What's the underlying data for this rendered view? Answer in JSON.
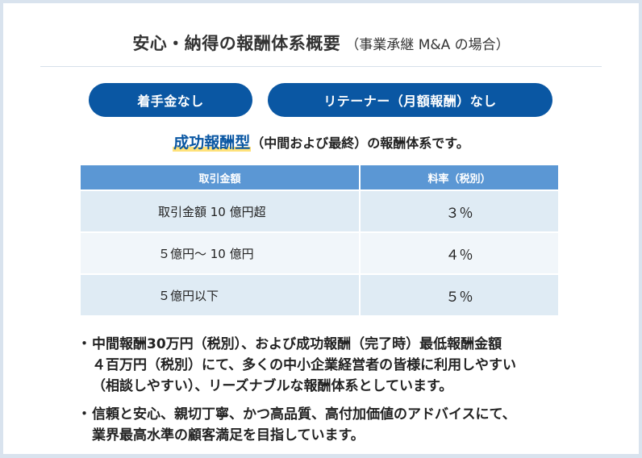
{
  "header": {
    "title": "安心・納得の報酬体系概要",
    "subtitle": "（事業承継 M&A の場合）"
  },
  "pills": [
    {
      "label": "着手金なし"
    },
    {
      "label": "リテーナー（月額報酬）なし"
    }
  ],
  "lead": {
    "highlight": "成功報酬型",
    "rest": "（中間および最終）の報酬体系です。"
  },
  "table": {
    "headers": [
      "取引金額",
      "料率（税別）"
    ],
    "rows": [
      {
        "amount": "取引金額 10 億円超",
        "rate": "３％"
      },
      {
        "amount": "５億円～ 10 億円",
        "rate": "４％"
      },
      {
        "amount": "５億円以下",
        "rate": "５％"
      }
    ]
  },
  "notes": [
    {
      "bullet": "・",
      "lines": [
        "中間報酬30万円（税別）、および成功報酬（完了時）最低報酬金額",
        "４百万円（税別）にて、多くの中小企業経営者の皆様に利用しやすい",
        "（相談しやすい）、リーズナブルな報酬体系としています。"
      ]
    },
    {
      "bullet": "・",
      "lines": [
        "信頼と安心、親切丁寧、かつ高品質、高付加価値のアドバイスにて、",
        "業界最高水準の顧客満足を目指しています。"
      ]
    }
  ],
  "colors": {
    "page_bg": "#d9e3ee",
    "card_bg": "#ffffff",
    "pill_bg": "#0a57a3",
    "table_header": "#5b97d4",
    "row_odd": "#dfebf4",
    "row_even": "#f1f6fa",
    "highlight_text": "#0a57a3",
    "highlight_underline": "#ffe27a"
  }
}
